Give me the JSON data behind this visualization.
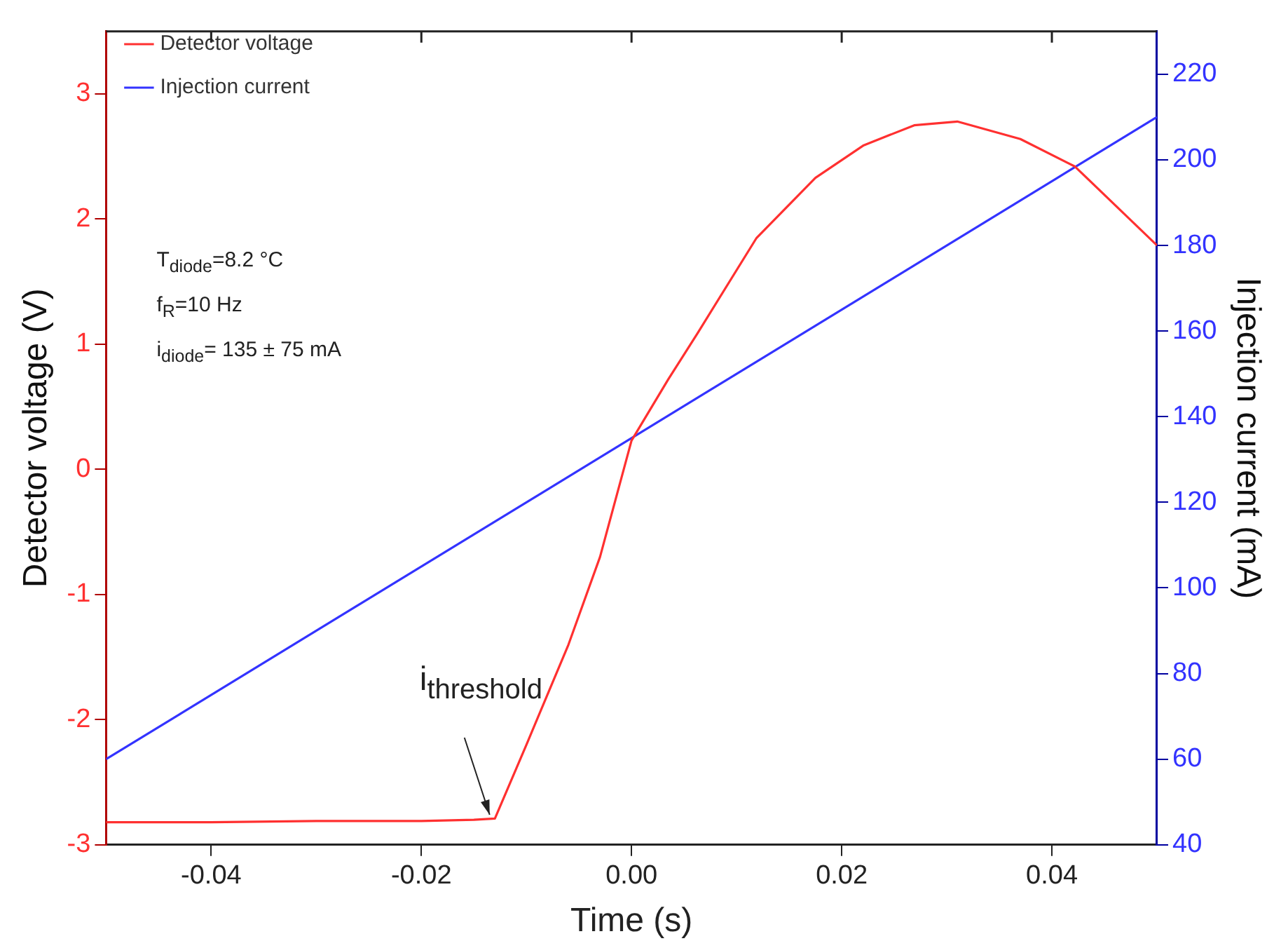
{
  "chart_data": {
    "type": "line",
    "xlabel": "Time (s)",
    "ylabel": "Detector voltage (V)",
    "y2label": "Injection current (mA)",
    "xlim": [
      -0.05,
      0.05
    ],
    "xticks": [
      {
        "value": -0.04,
        "label": "-0.04"
      },
      {
        "value": -0.02,
        "label": "-0.02"
      },
      {
        "value": 0,
        "label": "0.00"
      },
      {
        "value": 0.02,
        "label": "0.02"
      },
      {
        "value": 0.04,
        "label": "0.04"
      }
    ],
    "ylim": [
      -3,
      3.5
    ],
    "yticks": [
      -3,
      -2,
      -1,
      0,
      1,
      2,
      3
    ],
    "y2lim": [
      40,
      230
    ],
    "y2ticks": [
      40,
      60,
      80,
      100,
      120,
      140,
      160,
      180,
      200,
      220
    ],
    "legend": "top left",
    "marker": "none",
    "line_style": "solid",
    "series": [
      {
        "name": "Detector voltage",
        "color": "#ff3030",
        "x": [
          -0.05,
          -0.04,
          -0.03,
          -0.02,
          -0.015,
          -0.013,
          -0.01,
          -0.006,
          -0.003,
          0,
          0.0035,
          0.0063,
          0.0119,
          0.0175,
          0.0221,
          0.0269,
          0.031,
          0.037,
          0.0422,
          0.05
        ],
        "values": [
          -2.82,
          -2.82,
          -2.81,
          -2.81,
          -2.8,
          -2.79,
          -2.2,
          -1.4,
          -0.7,
          0.23,
          0.72,
          1.09,
          1.85,
          2.33,
          2.59,
          2.75,
          2.78,
          2.64,
          2.42,
          1.79
        ]
      },
      {
        "name": "Injection current",
        "color": "#3333ff",
        "axis": "y2",
        "x": [
          -0.05,
          0.05
        ],
        "values": [
          60,
          210
        ]
      }
    ],
    "annotations": [
      "T$_{diode}$=8.2 °C",
      "f$_{R}$=10 Hz",
      "i$_{diode}$= 135 ± 75 mA",
      {
        "text": "i$_{threshold}$",
        "x": -0.0135,
        "y": -2.76
      }
    ]
  }
}
